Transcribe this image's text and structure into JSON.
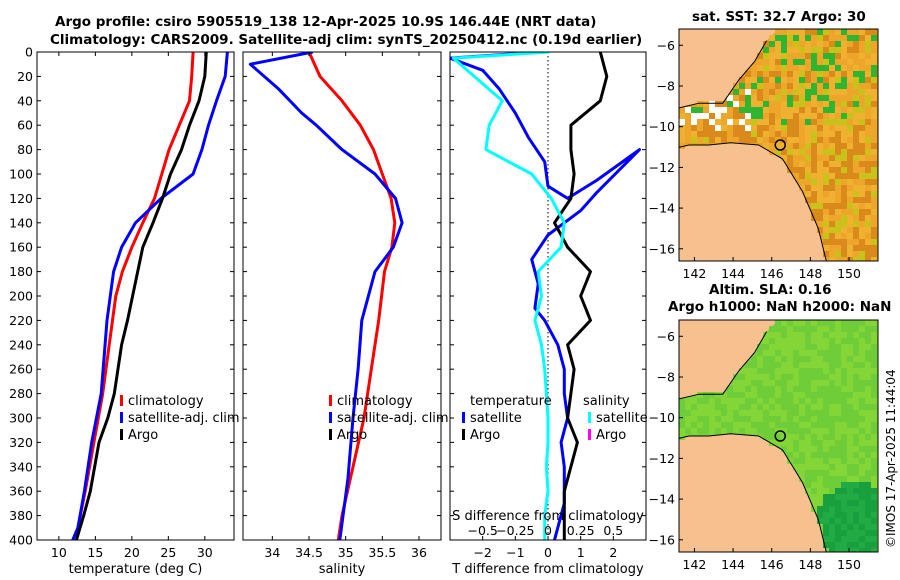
{
  "header": {
    "line1": "Argo profile: csiro 5905519_138 12-Apr-2025 10.9S 146.44E (NRT data)",
    "line2": "Climatology: CARS2009. Satellite-adj clim: synTS_20250412.nc (0.19d earlier)"
  },
  "map_sst": {
    "title": "sat. SST: 32.7 Argo: 30"
  },
  "map_sla": {
    "title_line1": "Altim. SLA: 0.16",
    "title_line2": "Argo h1000: NaN h2000: NaN"
  },
  "footer": {
    "credit": "©IMOS 17-Apr-2025 11:44:04"
  },
  "colors": {
    "climatology": "#ff0000",
    "satellite": "#0000ff",
    "argo": "#000000",
    "satellite_salinity": "#00ffff",
    "magenta": "#ff00ff"
  },
  "chart_data": [
    {
      "id": "temperature",
      "type": "line",
      "xlabel": "temperature (deg C)",
      "ylabel": "",
      "xlim": [
        7,
        34
      ],
      "ylim": [
        400,
        0
      ],
      "xticks": [
        10,
        15,
        20,
        25,
        30
      ],
      "yticks": [
        0,
        20,
        40,
        60,
        80,
        100,
        120,
        140,
        160,
        180,
        200,
        220,
        240,
        260,
        280,
        300,
        320,
        340,
        360,
        380,
        400
      ],
      "legend": {
        "position": "bottom-right",
        "entries": [
          "climatology",
          "satellite-adj. clim",
          "Argo"
        ]
      },
      "series": [
        {
          "name": "climatology",
          "color": "#ff0000",
          "x": [
            28.4,
            28.2,
            27.9,
            26.5,
            25.1,
            24.1,
            23.1,
            21.5,
            20.0,
            18.7,
            17.8,
            16.9,
            16.0,
            14.8,
            13.6,
            12.6,
            11.9
          ],
          "y": [
            0,
            20,
            40,
            60,
            80,
            100,
            120,
            140,
            160,
            180,
            200,
            240,
            280,
            320,
            360,
            390,
            400
          ]
        },
        {
          "name": "satellite-adj. clim",
          "color": "#0000ff",
          "x": [
            33.1,
            32.8,
            31.6,
            30.5,
            29.6,
            28.4,
            24.0,
            20.5,
            18.6,
            17.5,
            16.6,
            15.8,
            14.5,
            13.5,
            12.6,
            11.9
          ],
          "y": [
            0,
            20,
            40,
            60,
            80,
            100,
            120,
            140,
            160,
            180,
            220,
            280,
            320,
            360,
            390,
            400
          ]
        },
        {
          "name": "Argo",
          "color": "#000000",
          "x": [
            30.2,
            30.0,
            29.2,
            27.9,
            26.8,
            25.3,
            24.2,
            22.9,
            21.5,
            20.8,
            20.1,
            19.4,
            18.6,
            17.6,
            16.7,
            15.5,
            14.3,
            13.4,
            12.4
          ],
          "y": [
            0,
            20,
            40,
            60,
            80,
            100,
            120,
            140,
            160,
            180,
            200,
            220,
            240,
            280,
            300,
            320,
            360,
            380,
            400
          ]
        }
      ]
    },
    {
      "id": "salinity",
      "type": "line",
      "xlabel": "salinity",
      "ylabel": "",
      "xlim": [
        33.6,
        36.3
      ],
      "ylim": [
        400,
        0
      ],
      "xticks": [
        34,
        34.5,
        35,
        35.5,
        36
      ],
      "yticks": [
        0,
        20,
        40,
        60,
        80,
        100,
        120,
        140,
        160,
        180,
        200,
        220,
        240,
        260,
        280,
        300,
        320,
        340,
        360,
        380,
        400
      ],
      "legend": {
        "position": "bottom-right",
        "entries": [
          "climatology",
          "satellite-adj. clim",
          "Argo"
        ]
      },
      "series": [
        {
          "name": "climatology",
          "color": "#ff0000",
          "x": [
            34.5,
            34.65,
            34.95,
            35.2,
            35.38,
            35.5,
            35.62,
            35.67,
            35.63,
            35.53,
            35.45,
            35.35,
            35.25,
            35.1,
            34.95,
            34.9
          ],
          "y": [
            0,
            20,
            40,
            60,
            80,
            100,
            120,
            140,
            160,
            180,
            220,
            260,
            300,
            340,
            380,
            400
          ]
        },
        {
          "name": "satellite-adj. clim",
          "color": "#0000ff",
          "x": [
            34.55,
            33.7,
            34.08,
            34.4,
            34.6,
            34.95,
            35.4,
            35.68,
            35.77,
            35.65,
            35.4,
            35.22,
            35.17,
            35.1,
            35.03,
            34.92
          ],
          "y": [
            0,
            10,
            30,
            50,
            60,
            80,
            100,
            120,
            140,
            160,
            180,
            220,
            260,
            300,
            350,
            400
          ]
        }
      ]
    },
    {
      "id": "differences",
      "type": "line",
      "xlabel": "T difference from climatology",
      "top_axis_label": "S difference from climatology",
      "xlim": [
        -3,
        3
      ],
      "ylim": [
        400,
        0
      ],
      "xticks": [
        -2,
        -1,
        0,
        1,
        2
      ],
      "top_ticks": [
        -0.5,
        -0.25,
        0,
        0.25,
        0.5
      ],
      "legend": {
        "position": "bottom",
        "temperature_heading": "temperature",
        "salinity_heading": "salinity",
        "temperature_entries": [
          "satellite",
          "Argo"
        ],
        "salinity_entries": [
          "satellite",
          "Argo"
        ]
      },
      "series": [
        {
          "name": "T satellite",
          "color": "#0000ff",
          "x": [
            -0.2,
            -3.0,
            -2.0,
            -1.5,
            -1.0,
            -0.6,
            -0.1,
            0.0,
            0.6,
            1.5,
            2.8,
            1.5,
            1.0,
            0.0,
            -0.5,
            -0.3,
            -0.4,
            -0.1,
            0.3,
            0.5,
            0.5,
            0.6,
            0.4,
            0.5,
            0.5,
            0.2
          ],
          "y": [
            0,
            5,
            15,
            30,
            50,
            70,
            90,
            110,
            120,
            105,
            80,
            115,
            130,
            150,
            170,
            190,
            210,
            220,
            240,
            260,
            280,
            300,
            320,
            340,
            370,
            400
          ]
        },
        {
          "name": "T Argo",
          "color": "#000000",
          "x": [
            1.6,
            1.8,
            1.6,
            0.7,
            0.7,
            0.8,
            0.7,
            0.2,
            0.6,
            1.3,
            1.0,
            1.3,
            0.6,
            0.8,
            0.7,
            0.6,
            0.9,
            0.7,
            0.5,
            0.5,
            0.5
          ],
          "y": [
            0,
            20,
            40,
            60,
            80,
            100,
            120,
            140,
            160,
            180,
            200,
            220,
            240,
            260,
            280,
            300,
            320,
            340,
            360,
            380,
            400
          ]
        },
        {
          "name": "S satellite",
          "color": "#00ffff",
          "x": [
            0.05,
            -2.9,
            -1.4,
            -1.8,
            -1.9,
            -0.5,
            0.1,
            0.5,
            0.4,
            -0.3,
            -0.2,
            -0.4,
            -0.2,
            -0.1,
            -0.05,
            0.0,
            0.0,
            -0.05,
            0.0,
            -0.1,
            -0.1
          ],
          "y": [
            0,
            5,
            40,
            60,
            80,
            100,
            120,
            140,
            160,
            180,
            200,
            220,
            240,
            260,
            280,
            300,
            320,
            340,
            360,
            380,
            400
          ]
        }
      ]
    },
    {
      "id": "sst_map",
      "type": "heatmap",
      "title": "sat. SST: 32.7 Argo: 30",
      "xlim": [
        141.2,
        151.5
      ],
      "ylim": [
        -16.6,
        -5.2
      ],
      "xticks": [
        142,
        144,
        146,
        148,
        150
      ],
      "yticks": [
        -6,
        -8,
        -10,
        -12,
        -14,
        -16
      ],
      "argo_position": [
        146.44,
        -10.9
      ]
    },
    {
      "id": "sla_map",
      "type": "heatmap",
      "title": "Altim. SLA: 0.16",
      "subtitle": "Argo h1000: NaN h2000: NaN",
      "xlim": [
        141.2,
        151.5
      ],
      "ylim": [
        -16.6,
        -5.2
      ],
      "xticks": [
        142,
        144,
        146,
        148,
        150
      ],
      "yticks": [
        -6,
        -8,
        -10,
        -12,
        -14,
        -16
      ],
      "argo_position": [
        146.44,
        -10.9
      ]
    }
  ]
}
